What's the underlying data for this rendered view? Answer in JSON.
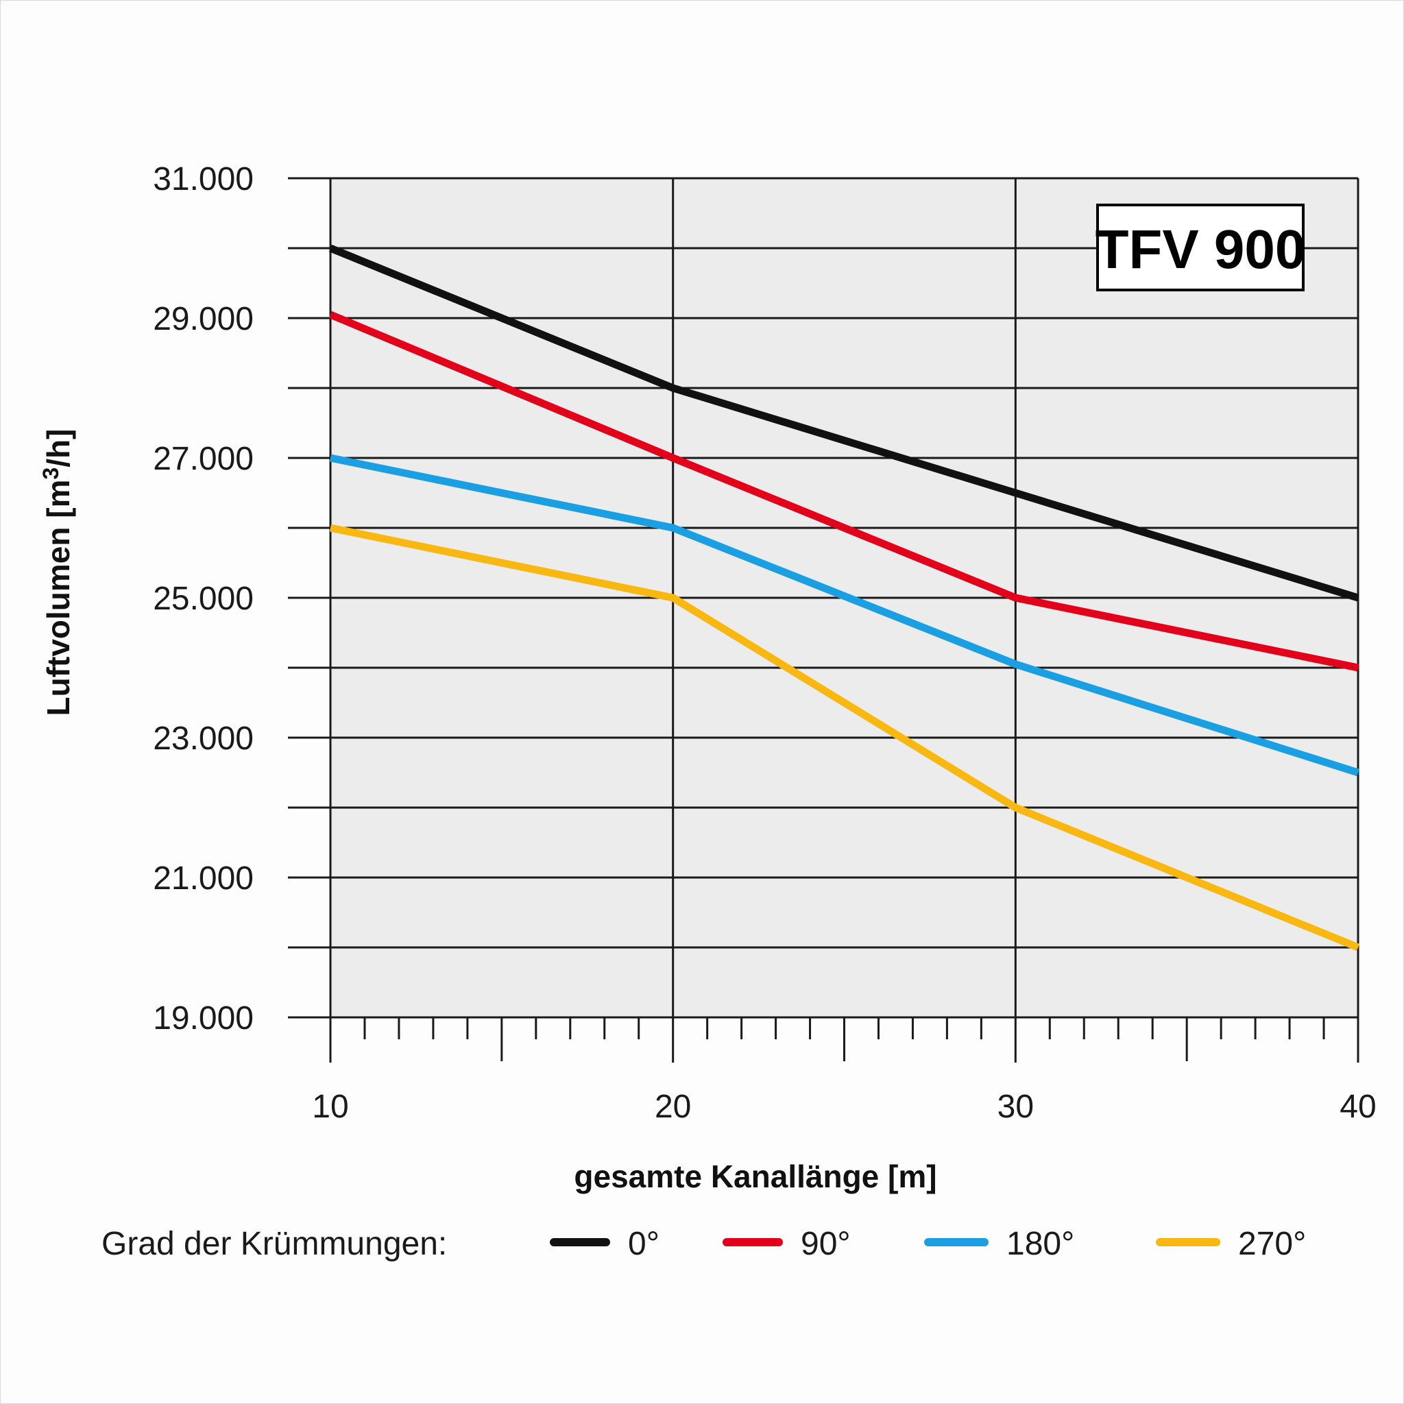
{
  "chart_data": {
    "type": "line",
    "title": "TFV 900",
    "xlabel": "gesamte Kanallänge [m]",
    "ylabel_main": "Luftvolumen [m",
    "ylabel_sup": "3",
    "ylabel_end": "/h]",
    "xlim": [
      10,
      40
    ],
    "ylim": [
      19000,
      31000
    ],
    "x_ticks": [
      10,
      20,
      30,
      40
    ],
    "x_tick_labels": [
      "10",
      "20",
      "30",
      "40"
    ],
    "y_ticks": [
      19000,
      21000,
      23000,
      25000,
      27000,
      29000,
      31000
    ],
    "y_tick_labels": [
      "19.000",
      "21.000",
      "23.000",
      "25.000",
      "27.000",
      "29.000",
      "31.000"
    ],
    "y_minor_ticks": [
      20000,
      22000,
      24000,
      26000,
      28000,
      30000
    ],
    "x_minor_step": 1,
    "grid": true,
    "plot_background": "#ececec",
    "legend_title": "Grad der Krümmungen:",
    "legend_placement": "bottom",
    "x": [
      10,
      20,
      30,
      40
    ],
    "series": [
      {
        "name": "0°",
        "color": "#111111",
        "values": [
          30000,
          28000,
          26500,
          25000
        ]
      },
      {
        "name": "90°",
        "color": "#e2001a",
        "values": [
          29050,
          27000,
          25000,
          24000
        ]
      },
      {
        "name": "180°",
        "color": "#1aa0e2",
        "values": [
          27000,
          26000,
          24050,
          22500
        ]
      },
      {
        "name": "270°",
        "color": "#f8b811",
        "values": [
          26000,
          25000,
          22000,
          20000
        ]
      }
    ]
  }
}
